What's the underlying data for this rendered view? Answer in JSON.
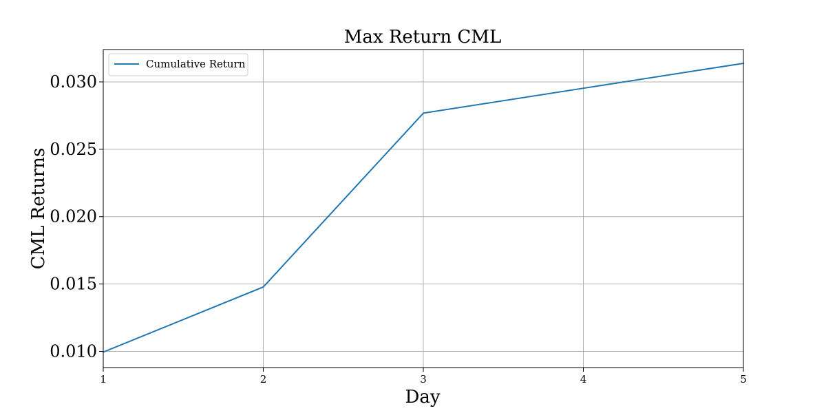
{
  "chart_data": {
    "type": "line",
    "title": "Max Return CML",
    "xlabel": "Day",
    "ylabel": "CML Returns",
    "x": [
      1,
      2,
      3,
      4,
      5
    ],
    "series": [
      {
        "name": "Cumulative Return",
        "values": [
          0.00995,
          0.01478,
          0.02768,
          0.02953,
          0.03138
        ],
        "color": "#1f77b4"
      }
    ],
    "xlim": [
      1,
      5
    ],
    "ylim": [
      0.0088,
      0.0324
    ],
    "x_ticks": [
      {
        "value": 1,
        "label": "1"
      },
      {
        "value": 2,
        "label": "2"
      },
      {
        "value": 3,
        "label": "3"
      },
      {
        "value": 4,
        "label": "4"
      },
      {
        "value": 5,
        "label": "5"
      }
    ],
    "y_ticks": [
      {
        "value": 0.01,
        "label": "0.010"
      },
      {
        "value": 0.015,
        "label": "0.015"
      },
      {
        "value": 0.02,
        "label": "0.020"
      },
      {
        "value": 0.025,
        "label": "0.025"
      },
      {
        "value": 0.03,
        "label": "0.030"
      }
    ],
    "grid": true,
    "legend_position": "top-left"
  }
}
